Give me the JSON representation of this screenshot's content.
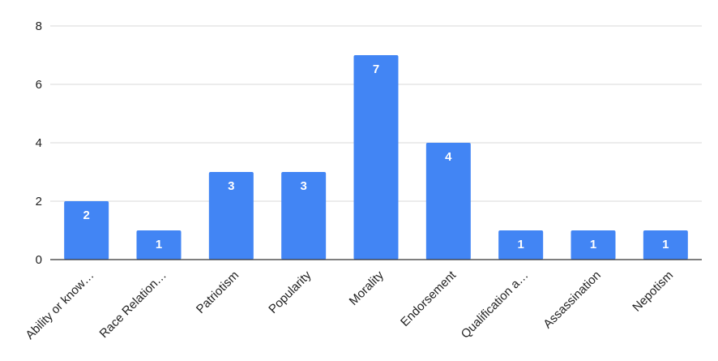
{
  "chart_data": {
    "type": "bar",
    "title": "",
    "xlabel": "",
    "ylabel": "",
    "ylim": [
      0,
      8
    ],
    "yticks": [
      0,
      2,
      4,
      6,
      8
    ],
    "grid": true,
    "legend": "none",
    "bar_color": "#4285f4",
    "categories": [
      "Ability or know…",
      "Race Relation…",
      "Patriotism",
      "Popularity",
      "Morality",
      "Endorsement",
      "Qualification a…",
      "Assassination",
      "Nepotism"
    ],
    "values": [
      2,
      1,
      3,
      3,
      7,
      4,
      1,
      1,
      1
    ],
    "data_labels": [
      "2",
      "1",
      "3",
      "3",
      "7",
      "4",
      "1",
      "1",
      "1"
    ]
  }
}
